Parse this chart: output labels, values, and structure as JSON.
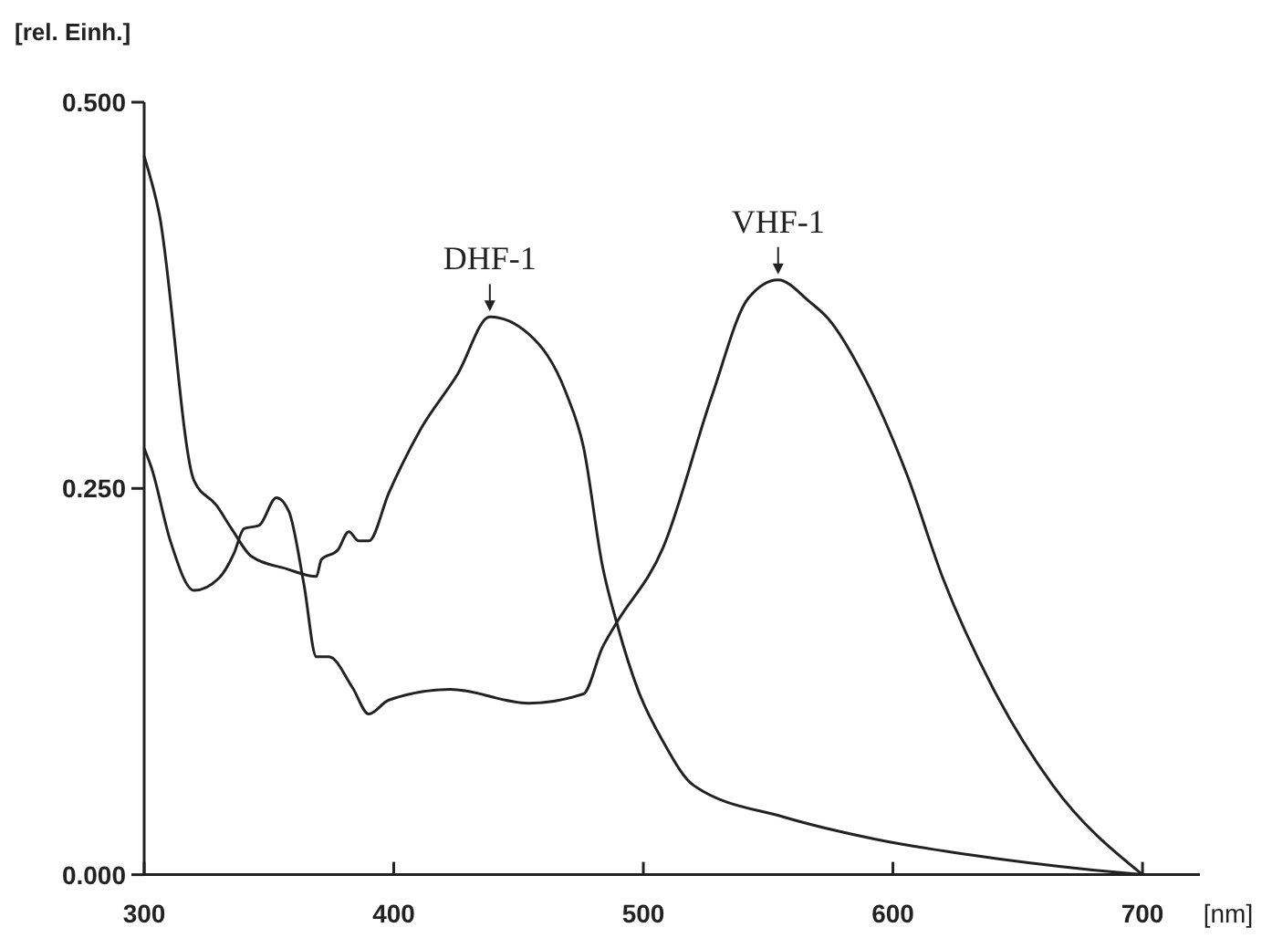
{
  "chart_data": {
    "type": "line",
    "xlabel": "[nm]",
    "ylabel": "[rel. Einh.]",
    "xlim": [
      300,
      723
    ],
    "ylim": [
      0,
      0.5
    ],
    "xticks": [
      300,
      400,
      500,
      600,
      700
    ],
    "yticks": [
      {
        "value": 0,
        "label": "0.000"
      },
      {
        "value": 0.25,
        "label": "0.250"
      },
      {
        "value": 0.5,
        "label": "0.500"
      }
    ],
    "grid": false,
    "marker": "none",
    "line_style": "solid",
    "series": [
      {
        "color": "#222222",
        "x": [
          300,
          306,
          320,
          329,
          335,
          343,
          357,
          369,
          371,
          377.5,
          382,
          386,
          390,
          398,
          411,
          425.6,
          438.5,
          454,
          469,
          476,
          483.6,
          489.7,
          498,
          508,
          520,
          557,
          593,
          630,
          680,
          700
        ],
        "values": [
          0.465,
          0.428,
          0.255,
          0.239,
          0.224,
          0.206,
          0.198,
          0.193,
          0.204,
          0.21,
          0.222,
          0.216,
          0.216,
          0.247,
          0.289,
          0.324,
          0.361,
          0.35,
          0.312,
          0.277,
          0.2,
          0.161,
          0.119,
          0.086,
          0.058,
          0.037,
          0.023,
          0.013,
          0.003,
          0
        ]
      },
      {
        "color": "#222222",
        "x": [
          300,
          303,
          310.5,
          320,
          330,
          336,
          340,
          346,
          353,
          358,
          364,
          369,
          374,
          383.5,
          390,
          398,
          422.6,
          454,
          476,
          483.6,
          488.5,
          508,
          527.5,
          542,
          554,
          566.5,
          574,
          588.5,
          605.6,
          620,
          640,
          664,
          700
        ],
        "values": [
          0.276,
          0.263,
          0.216,
          0.184,
          0.192,
          0.208,
          0.224,
          0.226,
          0.244,
          0.235,
          0.188,
          0.141,
          0.141,
          0.121,
          0.104,
          0.113,
          0.12,
          0.111,
          0.117,
          0.147,
          0.161,
          0.212,
          0.31,
          0.373,
          0.385,
          0.371,
          0.36,
          0.322,
          0.259,
          0.192,
          0.121,
          0.058,
          0
        ]
      }
    ],
    "annotations": [
      {
        "text": "DHF-1",
        "x": 438.5,
        "y": 0.361
      },
      {
        "text": "VHF-1",
        "x": 554,
        "y": 0.385
      }
    ]
  }
}
